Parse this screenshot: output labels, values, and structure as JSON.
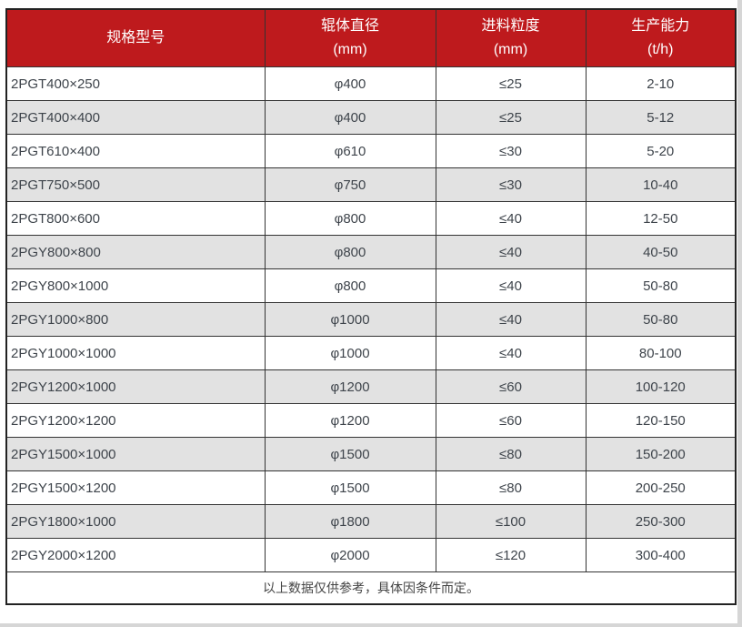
{
  "table": {
    "columns": [
      {
        "label": "规格型号",
        "sub": ""
      },
      {
        "label": "辊体直径",
        "sub": "(mm)"
      },
      {
        "label": "进料粒度",
        "sub": "(mm)"
      },
      {
        "label": "生产能力",
        "sub": "(t/h)"
      }
    ],
    "rows": [
      [
        "2PGT400×250",
        "φ400",
        "≤25",
        "2-10"
      ],
      [
        "2PGT400×400",
        "φ400",
        "≤25",
        "5-12"
      ],
      [
        "2PGT610×400",
        "φ610",
        "≤30",
        "5-20"
      ],
      [
        "2PGT750×500",
        "φ750",
        "≤30",
        "10-40"
      ],
      [
        "2PGT800×600",
        "φ800",
        "≤40",
        "12-50"
      ],
      [
        "2PGY800×800",
        "φ800",
        "≤40",
        "40-50"
      ],
      [
        "2PGY800×1000",
        "φ800",
        "≤40",
        "50-80"
      ],
      [
        "2PGY1000×800",
        "φ1000",
        "≤40",
        "50-80"
      ],
      [
        "2PGY1000×1000",
        "φ1000",
        "≤40",
        "80-100"
      ],
      [
        "2PGY1200×1000",
        "φ1200",
        "≤60",
        "100-120"
      ],
      [
        "2PGY1200×1200",
        "φ1200",
        "≤60",
        "120-150"
      ],
      [
        "2PGY1500×1000",
        "φ1500",
        "≤80",
        "150-200"
      ],
      [
        "2PGY1500×1200",
        "φ1500",
        "≤80",
        "200-250"
      ],
      [
        "2PGY1800×1000",
        "φ1800",
        "≤100",
        "250-300"
      ],
      [
        "2PGY2000×1200",
        "φ2000",
        "≤120",
        "300-400"
      ]
    ],
    "footer_note": "以上数据仅供参考，具体因条件而定。"
  },
  "colors": {
    "header_bg": "#be1a1d",
    "header_text": "#ffffff",
    "alt_row_bg": "#e2e2e2",
    "border": "#333333",
    "body_text": "#3e444b"
  }
}
